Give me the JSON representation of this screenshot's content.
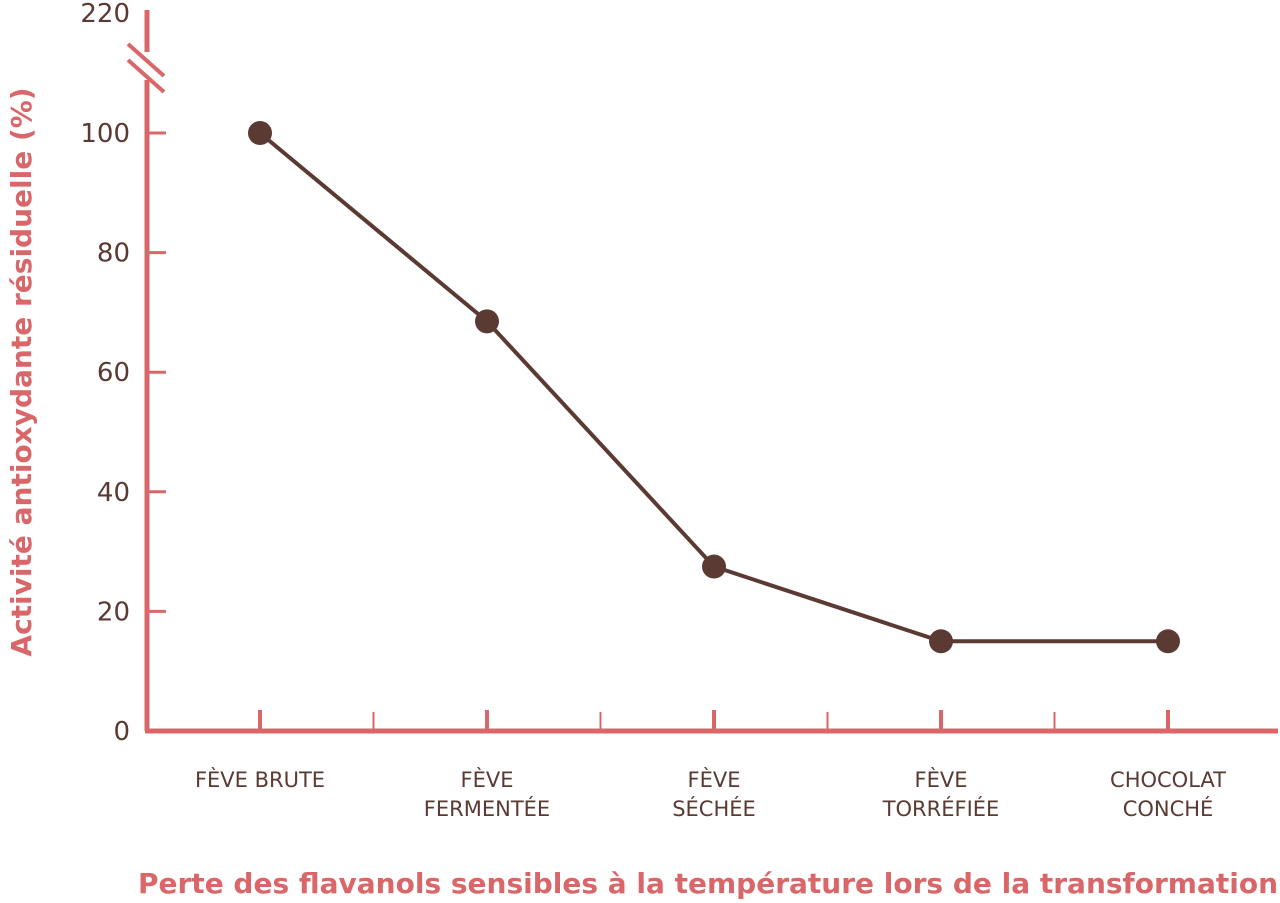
{
  "chart_data": {
    "type": "line",
    "ylabel": "Activité antioxydante résiduelle (%)",
    "xlabel": "Perte des flavanols sensibles à la température lors de la transformation",
    "categories": [
      [
        "FÈVE BRUTE"
      ],
      [
        "FÈVE",
        "FERMENTÉE"
      ],
      [
        "FÈVE",
        "SÉCHÉE"
      ],
      [
        "FÈVE",
        "TORRÉFIÉE"
      ],
      [
        "CHOCOLAT",
        "CONCHÉ"
      ]
    ],
    "series": [
      {
        "values": [
          100,
          68.5,
          27.5,
          15,
          15
        ]
      }
    ],
    "y_ticks": [
      0,
      20,
      40,
      60,
      80,
      100
    ],
    "y_break_label": "220",
    "ylim": [
      0,
      100
    ],
    "axis_break": true,
    "grid": false,
    "colors": {
      "axis": "#d9676a",
      "line": "#5a3a32",
      "marker": "#5a3a32",
      "text": "#5a3a32"
    }
  }
}
